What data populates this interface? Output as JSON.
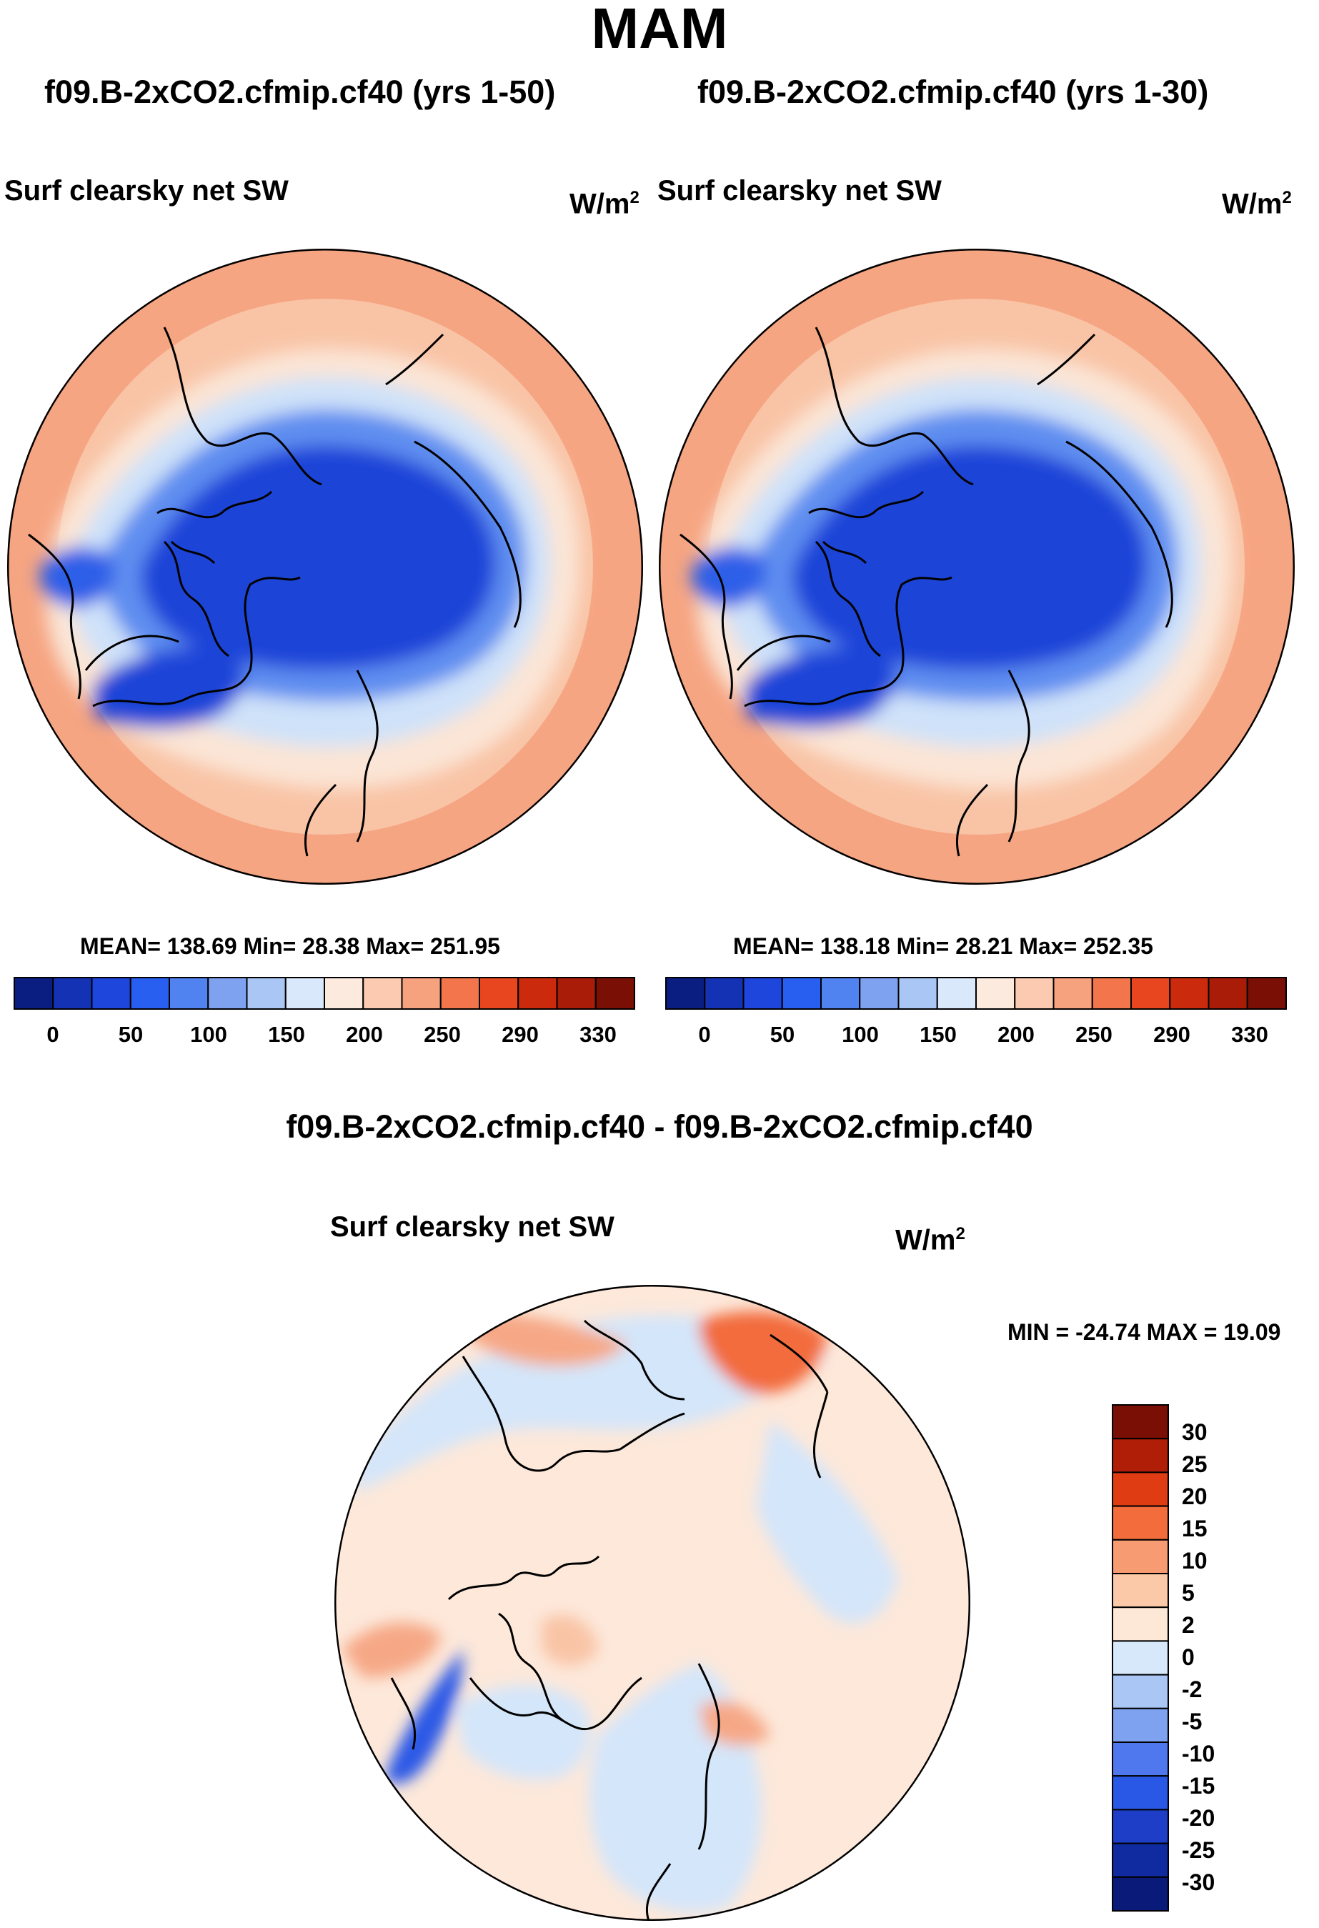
{
  "title": "MAM",
  "panels": [
    {
      "run_title": "f09.B-2xCO2.cfmip.cf40 (yrs 1-50)",
      "variable": "Surf clearsky net SW",
      "units": "W/m",
      "units_exp": "2",
      "stats": "MEAN= 138.69  Min=  28.38  Max= 251.95"
    },
    {
      "run_title": "f09.B-2xCO2.cfmip.cf40 (yrs 1-30)",
      "variable": "Surf clearsky net SW",
      "units": "W/m",
      "units_exp": "2",
      "stats": "MEAN= 138.18  Min=  28.21  Max= 252.35"
    }
  ],
  "difference": {
    "title": "f09.B-2xCO2.cfmip.cf40 - f09.B-2xCO2.cfmip.cf40",
    "variable": "Surf clearsky net SW",
    "units": "W/m",
    "units_exp": "2",
    "stats": "MIN = -24.74 MAX =  19.09"
  },
  "colorbar_top": {
    "colors": [
      "#0a1e82",
      "#1432b4",
      "#1e46dc",
      "#285ff0",
      "#5082f0",
      "#7ea2f0",
      "#aac6f5",
      "#d9e8fa",
      "#fbeadd",
      "#fbcab0",
      "#f7a27e",
      "#f2754c",
      "#e8461e",
      "#cc2a0c",
      "#a81c08",
      "#7a0f05"
    ],
    "tick_labels": [
      "0",
      "50",
      "100",
      "150",
      "200",
      "250",
      "290",
      "330"
    ]
  },
  "colorbar_diff": {
    "colors_top_to_bottom": [
      "#7a0f05",
      "#b01e08",
      "#e03c14",
      "#f26c3c",
      "#f79c72",
      "#fbc8a8",
      "#fde8d8",
      "#d6e8f9",
      "#aac6f5",
      "#7ea2f0",
      "#5078ee",
      "#2a58e6",
      "#1e3ec8",
      "#102aa0",
      "#0a1a78"
    ],
    "tick_labels": [
      "30",
      "25",
      "20",
      "15",
      "10",
      "5",
      "2",
      "0",
      "-2",
      "-5",
      "-10",
      "-15",
      "-20",
      "-25",
      "-30"
    ]
  },
  "map_colors": {
    "ocean_warm": "#f8c3a5",
    "ocean_hot": "#f5a27f",
    "pale": "#fbe6d8",
    "light_blue": "#cfe2f9",
    "mid_blue": "#5f8ef0",
    "deep_blue": "#1f45d8",
    "diff_base": "#fde8da",
    "diff_neg": "#d4e6fa",
    "diff_pos": "#f6a886"
  }
}
